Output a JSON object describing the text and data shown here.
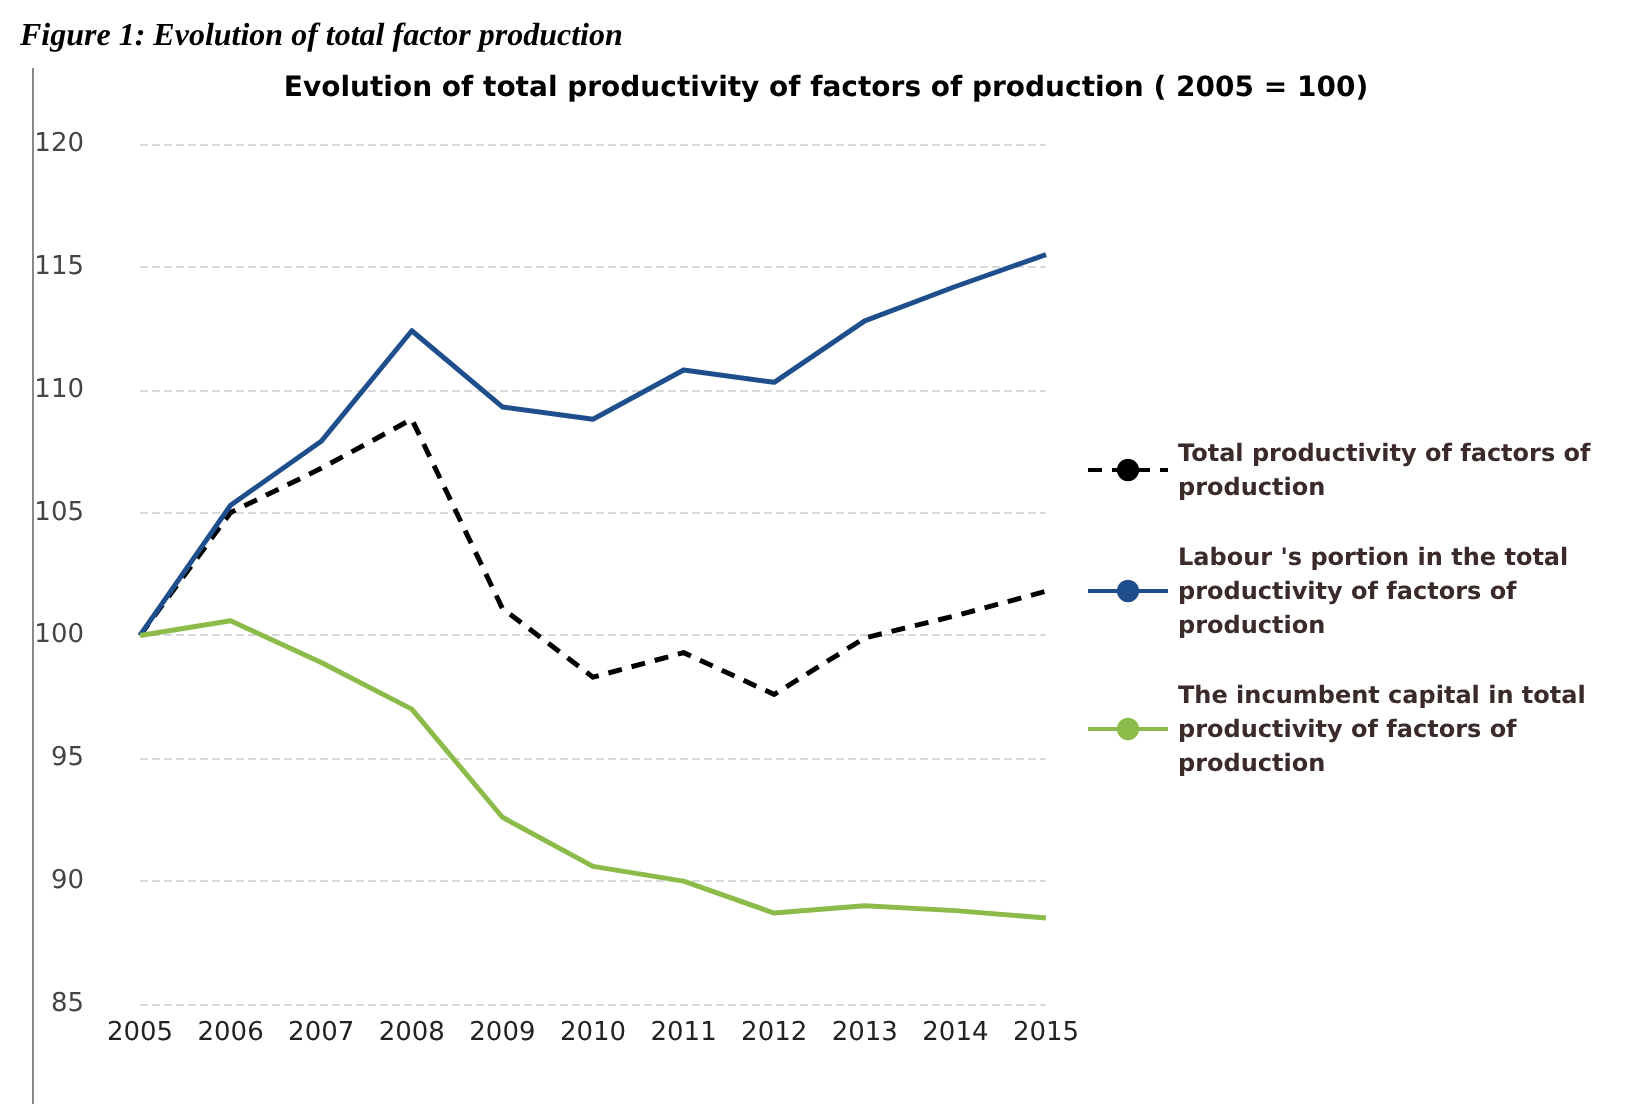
{
  "chart_data": {
    "type": "line",
    "title": "Evolution of total productivity of factors of production ( 2005 = 100)",
    "annotations": [
      "Figure 1: Evolution of total factor production"
    ],
    "categories": [
      "2005",
      "2006",
      "2007",
      "2008",
      "2009",
      "2010",
      "2011",
      "2012",
      "2013",
      "2014",
      "2015"
    ],
    "series": [
      {
        "name": "Total productivity of factors of production",
        "color": "#000000",
        "line_style": "dashed",
        "values": [
          100,
          105,
          106.8,
          108.8,
          101.1,
          98.3,
          99.3,
          97.6,
          99.9,
          100.8,
          101.8
        ]
      },
      {
        "name": "Labour 's portion in the total productivity of factors of production",
        "color": "#1f4e8c",
        "line_style": "solid",
        "values": [
          100,
          105.3,
          107.9,
          112.4,
          109.3,
          108.8,
          110.8,
          110.3,
          112.8,
          114.2,
          115.5
        ]
      },
      {
        "name": "The incumbent capital in total productivity of factors of production",
        "color": "#8cbb4a",
        "line_style": "solid",
        "values": [
          100,
          100.6,
          98.9,
          97,
          92.6,
          90.6,
          90,
          88.7,
          89,
          88.8,
          88.5
        ]
      }
    ],
    "ylim": [
      85,
      120
    ],
    "yticks": [
      85,
      90,
      95,
      100,
      105,
      110,
      115,
      120
    ],
    "grid": "y",
    "legend": "right",
    "marker": "none"
  }
}
